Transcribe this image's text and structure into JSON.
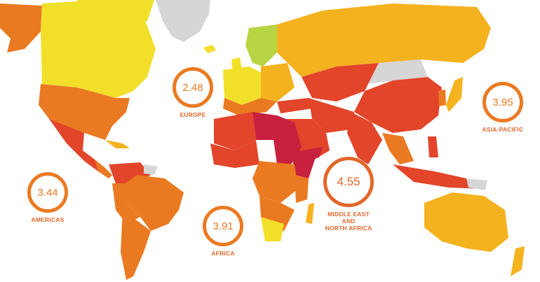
{
  "colors": {
    "very_high": "#c8203f",
    "high": "#e2452a",
    "medium_high": "#ea7a22",
    "medium": "#f5b21f",
    "low": "#f2df2a",
    "very_low": "#b7d443",
    "no_data": "#d6d6d6",
    "water": "#ffffff"
  },
  "regions": {
    "europe": {
      "score": "2.48",
      "label": "EUROPE"
    },
    "asia_pacific": {
      "score": "3.95",
      "label": "ASIA-PACIFIC"
    },
    "americas": {
      "score": "3.44",
      "label": "AMERICAS"
    },
    "africa": {
      "score": "3.91",
      "label": "AFRICA"
    },
    "middle_east": {
      "score": "4.55",
      "label_lines": [
        "MIDDLE EAST",
        "AND",
        "NORTH AFRICA"
      ]
    }
  }
}
